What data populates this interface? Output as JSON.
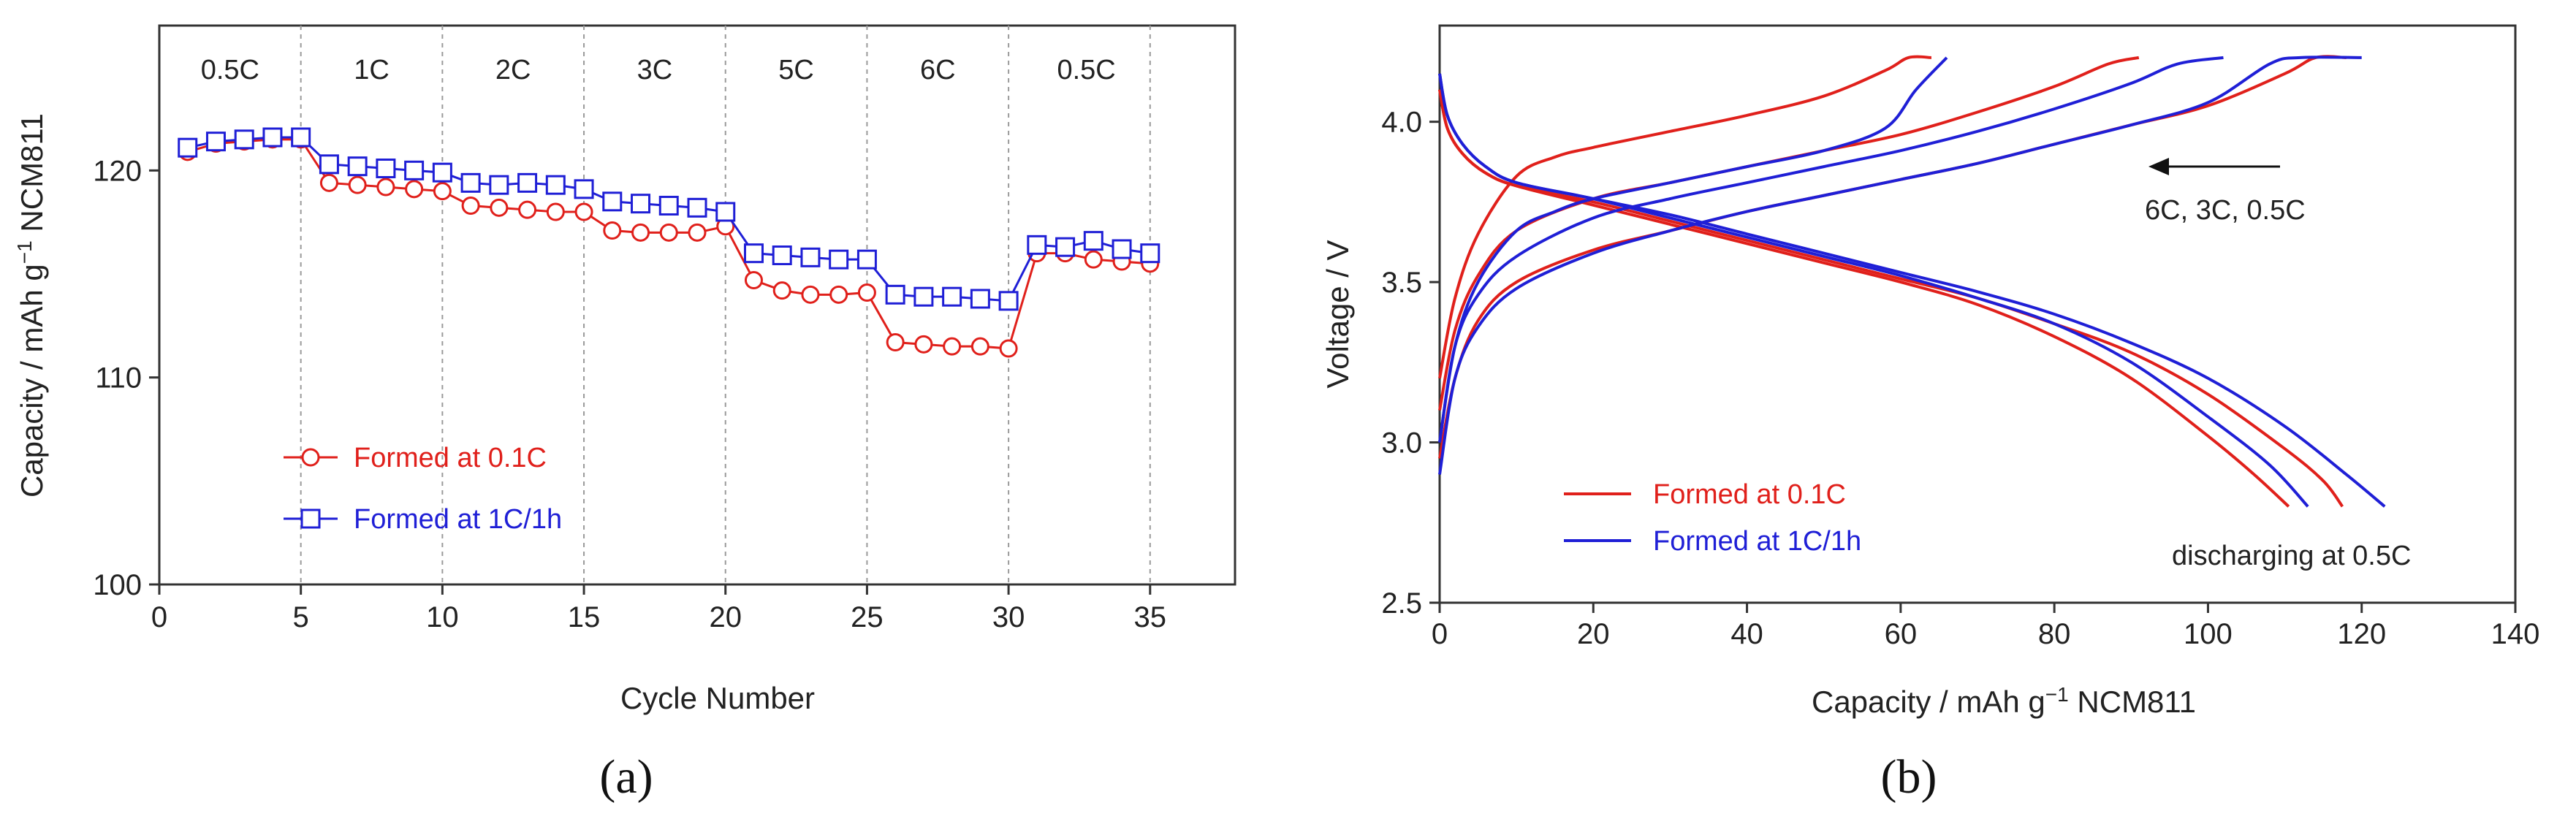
{
  "chart_data": [
    {
      "panel": "a",
      "caption": "(a)",
      "type": "line",
      "xlabel": "Cycle Number",
      "ylabel_main": "Capacity / mAh g",
      "ylabel_sup": "−1",
      "ylabel_tail": " NCM811",
      "xlim": [
        0,
        38
      ],
      "ylim": [
        100,
        127
      ],
      "xticks": [
        0,
        5,
        10,
        15,
        20,
        25,
        30,
        35
      ],
      "yticks": [
        100,
        110,
        120
      ],
      "rate_segments": [
        {
          "label": "0.5C",
          "from": 0,
          "to": 5
        },
        {
          "label": "1C",
          "from": 5,
          "to": 10
        },
        {
          "label": "2C",
          "from": 10,
          "to": 15
        },
        {
          "label": "3C",
          "from": 15,
          "to": 20
        },
        {
          "label": "5C",
          "from": 20,
          "to": 25
        },
        {
          "label": "6C",
          "from": 25,
          "to": 30
        },
        {
          "label": "0.5C",
          "from": 30,
          "to": 35.5
        }
      ],
      "boundaries": [
        5,
        10,
        15,
        20,
        25,
        30,
        35
      ],
      "series": [
        {
          "name": "Formed at 0.1C",
          "color": "#e0201b",
          "marker": "circle",
          "x": [
            1,
            2,
            3,
            4,
            5,
            6,
            7,
            8,
            9,
            10,
            11,
            12,
            13,
            14,
            15,
            16,
            17,
            18,
            19,
            20,
            21,
            22,
            23,
            24,
            25,
            26,
            27,
            28,
            29,
            30,
            31,
            32,
            33,
            34,
            35
          ],
          "values": [
            120.9,
            121.3,
            121.4,
            121.5,
            121.5,
            119.4,
            119.3,
            119.2,
            119.1,
            119.0,
            118.3,
            118.2,
            118.1,
            118.0,
            118.0,
            117.1,
            117.0,
            117.0,
            117.0,
            117.3,
            114.7,
            114.2,
            114.0,
            114.0,
            114.1,
            111.7,
            111.6,
            111.5,
            111.5,
            111.4,
            116.0,
            116.0,
            115.7,
            115.6,
            115.5
          ]
        },
        {
          "name": "Formed at 1C/1h",
          "color": "#1f1fd6",
          "marker": "square",
          "x": [
            1,
            2,
            3,
            4,
            5,
            6,
            7,
            8,
            9,
            10,
            11,
            12,
            13,
            14,
            15,
            16,
            17,
            18,
            19,
            20,
            21,
            22,
            23,
            24,
            25,
            26,
            27,
            28,
            29,
            30,
            31,
            32,
            33,
            34,
            35
          ],
          "values": [
            121.1,
            121.4,
            121.5,
            121.6,
            121.6,
            120.3,
            120.2,
            120.1,
            120.0,
            119.9,
            119.4,
            119.3,
            119.4,
            119.3,
            119.1,
            118.5,
            118.4,
            118.3,
            118.2,
            118.0,
            116.0,
            115.9,
            115.8,
            115.7,
            115.7,
            114.0,
            113.9,
            113.9,
            113.8,
            113.7,
            116.4,
            116.3,
            116.6,
            116.2,
            116.0
          ]
        }
      ]
    },
    {
      "panel": "b",
      "caption": "(b)",
      "type": "line",
      "xlabel_main": "Capacity / mAh g",
      "xlabel_sup": "−1",
      "xlabel_tail": " NCM811",
      "ylabel": "Voltage / V",
      "xlim": [
        0,
        140
      ],
      "ylim": [
        2.5,
        4.3
      ],
      "xticks": [
        0,
        20,
        40,
        60,
        80,
        100,
        120,
        140
      ],
      "yticks": [
        2.5,
        3.0,
        3.5,
        4.0
      ],
      "ytick_labels": [
        "2.5",
        "3.0",
        "3.5",
        "4.0"
      ],
      "annotation_rates": "6C, 3C, 0.5C",
      "annotation_discharge": "discharging at 0.5C",
      "series": [
        {
          "name": "Formed at 0.1C",
          "color": "#e0201b",
          "charge_curves": [
            {
              "rate": "6C",
              "x": [
                0,
                2,
                5,
                10,
                15,
                20,
                30,
                40,
                50,
                58,
                61,
                64
              ],
              "y": [
                3.2,
                3.45,
                3.65,
                3.83,
                3.89,
                3.92,
                3.97,
                4.02,
                4.08,
                4.16,
                4.2,
                4.2
              ]
            },
            {
              "rate": "3C",
              "x": [
                0,
                2,
                5,
                10,
                20,
                30,
                40,
                50,
                60,
                70,
                80,
                87,
                91
              ],
              "y": [
                3.1,
                3.35,
                3.52,
                3.66,
                3.76,
                3.81,
                3.86,
                3.91,
                3.96,
                4.03,
                4.11,
                4.18,
                4.2
              ]
            },
            {
              "rate": "0.5C",
              "x": [
                0,
                2,
                5,
                10,
                20,
                30,
                40,
                50,
                60,
                70,
                80,
                90,
                100,
                110,
                114,
                118
              ],
              "y": [
                2.95,
                3.2,
                3.38,
                3.5,
                3.6,
                3.66,
                3.72,
                3.77,
                3.82,
                3.87,
                3.93,
                3.99,
                4.05,
                4.15,
                4.2,
                4.2
              ]
            }
          ],
          "discharge_curves": [
            {
              "x": [
                0,
                1,
                3,
                6,
                10,
                20,
                30,
                40,
                50,
                60,
                70,
                80,
                90,
                100,
                106,
                110.5
              ],
              "y": [
                4.1,
                3.98,
                3.9,
                3.84,
                3.8,
                3.74,
                3.68,
                3.62,
                3.56,
                3.5,
                3.43,
                3.33,
                3.2,
                3.02,
                2.9,
                2.8
              ]
            },
            {
              "x": [
                0,
                1,
                3,
                6,
                10,
                20,
                30,
                40,
                50,
                60,
                70,
                80,
                90,
                100,
                110,
                115,
                117.5
              ],
              "y": [
                4.1,
                3.98,
                3.9,
                3.84,
                3.8,
                3.75,
                3.69,
                3.63,
                3.57,
                3.51,
                3.45,
                3.37,
                3.28,
                3.15,
                2.98,
                2.88,
                2.8
              ]
            }
          ]
        },
        {
          "name": "Formed at 1C/1h",
          "color": "#1f1fd6",
          "charge_curves": [
            {
              "rate": "6C",
              "x": [
                0,
                2,
                5,
                10,
                15,
                20,
                30,
                40,
                50,
                58,
                62,
                66
              ],
              "y": [
                3.0,
                3.3,
                3.5,
                3.66,
                3.72,
                3.76,
                3.81,
                3.86,
                3.91,
                3.98,
                4.1,
                4.2
              ]
            },
            {
              "rate": "3C",
              "x": [
                0,
                2,
                5,
                10,
                20,
                30,
                40,
                50,
                60,
                70,
                80,
                90,
                96,
                102
              ],
              "y": [
                3.0,
                3.3,
                3.46,
                3.58,
                3.7,
                3.76,
                3.81,
                3.86,
                3.91,
                3.97,
                4.04,
                4.12,
                4.18,
                4.2
              ]
            },
            {
              "rate": "0.5C",
              "x": [
                0,
                2,
                5,
                10,
                20,
                30,
                40,
                50,
                60,
                70,
                80,
                90,
                100,
                108,
                112,
                120
              ],
              "y": [
                2.9,
                3.2,
                3.36,
                3.48,
                3.59,
                3.66,
                3.72,
                3.77,
                3.82,
                3.87,
                3.93,
                3.99,
                4.06,
                4.18,
                4.2,
                4.2
              ]
            }
          ],
          "discharge_curves": [
            {
              "x": [
                0,
                1,
                3,
                6,
                10,
                20,
                30,
                40,
                50,
                60,
                70,
                80,
                90,
                100,
                108,
                113
              ],
              "y": [
                4.15,
                4.02,
                3.93,
                3.86,
                3.81,
                3.76,
                3.7,
                3.64,
                3.58,
                3.52,
                3.45,
                3.37,
                3.25,
                3.08,
                2.93,
                2.8
              ]
            },
            {
              "x": [
                0,
                1,
                3,
                6,
                10,
                20,
                30,
                40,
                50,
                60,
                70,
                80,
                90,
                100,
                110,
                118,
                123
              ],
              "y": [
                4.15,
                4.02,
                3.93,
                3.86,
                3.81,
                3.76,
                3.71,
                3.65,
                3.59,
                3.53,
                3.47,
                3.4,
                3.31,
                3.2,
                3.05,
                2.9,
                2.8
              ]
            }
          ]
        }
      ]
    }
  ]
}
